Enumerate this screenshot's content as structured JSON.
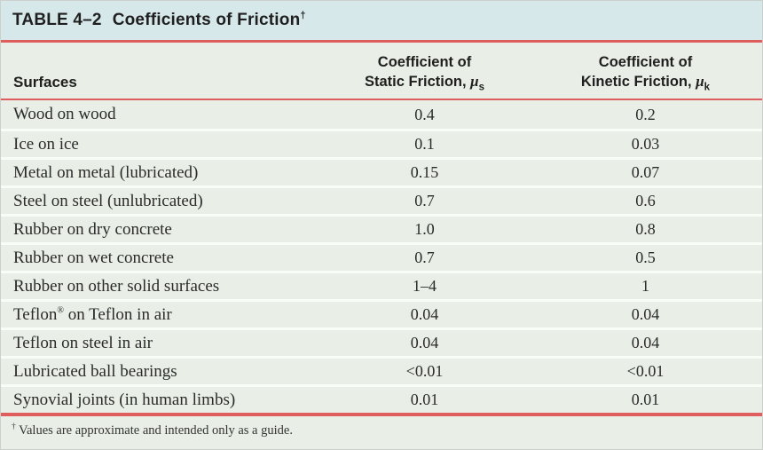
{
  "table": {
    "title_label": "TABLE 4–2",
    "title_text": "Coefficients of Friction",
    "footnote_marker": "†",
    "columns": {
      "surfaces": "Surfaces",
      "static": {
        "line1": "Coefficient of",
        "line2": "Static Friction, ",
        "symbol": "μ",
        "subscript": "s"
      },
      "kinetic": {
        "line1": "Coefficient of",
        "line2": "Kinetic Friction, ",
        "symbol": "μ",
        "subscript": "k"
      }
    },
    "rows": [
      {
        "surface": "Wood on wood",
        "static": "0.4",
        "kinetic": "0.2"
      },
      {
        "surface": "Ice on ice",
        "static": "0.1",
        "kinetic": "0.03"
      },
      {
        "surface": "Metal on metal (lubricated)",
        "static": "0.15",
        "kinetic": "0.07"
      },
      {
        "surface": "Steel on steel (unlubricated)",
        "static": "0.7",
        "kinetic": "0.6"
      },
      {
        "surface": "Rubber on dry concrete",
        "static": "1.0",
        "kinetic": "0.8"
      },
      {
        "surface": "Rubber on wet concrete",
        "static": "0.7",
        "kinetic": "0.5"
      },
      {
        "surface": "Rubber on other solid surfaces",
        "static": "1–4",
        "kinetic": "1"
      },
      {
        "surface": "Teflon® on Teflon in air",
        "static": "0.04",
        "kinetic": "0.04"
      },
      {
        "surface": "Teflon on steel in air",
        "static": "0.04",
        "kinetic": "0.04"
      },
      {
        "surface": "Lubricated ball bearings",
        "static": "<0.01",
        "kinetic": "<0.01"
      },
      {
        "surface": "Synovial joints (in human limbs)",
        "static": "0.01",
        "kinetic": "0.01"
      }
    ],
    "footnote_text": "Values are approximate and intended only as a guide."
  },
  "colors": {
    "title_bar_bg": "#d7e8ea",
    "body_bg": "#e9efe6",
    "rule_red": "#e05d5d",
    "row_separator": "#fafcf7",
    "text": "#1f1f1f"
  }
}
